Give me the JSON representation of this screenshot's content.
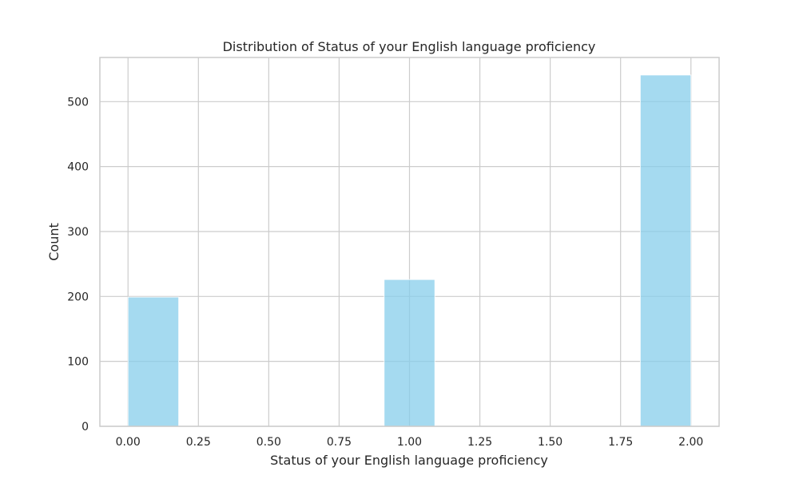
{
  "chart_data": {
    "type": "bar",
    "title": "Distribution of Status of your English language proficiency",
    "xlabel": "Status of your English language proficiency",
    "ylabel": "Count",
    "xlim": [
      -0.1,
      2.1
    ],
    "ylim": [
      0,
      568
    ],
    "xticks": [
      0.0,
      0.25,
      0.5,
      0.75,
      1.0,
      1.25,
      1.5,
      1.75,
      2.0
    ],
    "xtick_labels": [
      "0.00",
      "0.25",
      "0.50",
      "0.75",
      "1.00",
      "1.25",
      "1.50",
      "1.75",
      "2.00"
    ],
    "yticks": [
      0,
      100,
      200,
      300,
      400,
      500
    ],
    "ytick_labels": [
      "0",
      "100",
      "200",
      "300",
      "400",
      "500"
    ],
    "bins": [
      {
        "x0": 0.0,
        "x1": 0.18,
        "value": 199
      },
      {
        "x0": 0.91,
        "x1": 1.09,
        "value": 226
      },
      {
        "x0": 1.82,
        "x1": 2.0,
        "value": 541
      }
    ],
    "grid": true,
    "bar_color": "#87ceeb",
    "legend": "none"
  }
}
